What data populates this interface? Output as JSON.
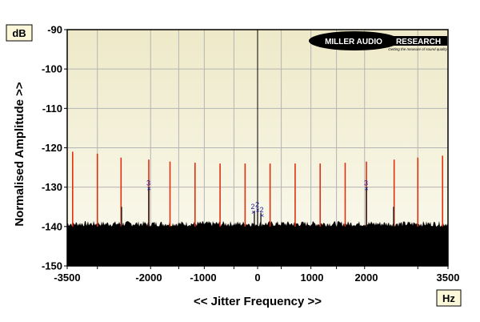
{
  "chart_data": {
    "type": "line",
    "ylabel": "Normalised Amplitude >>",
    "xlabel": "<< Jitter Frequency >>",
    "y_unit": "dB",
    "x_unit": "Hz",
    "xlim": [
      -3500,
      3500
    ],
    "ylim": [
      -150,
      -90
    ],
    "x_tick_labels": [
      {
        "value": -3500,
        "label": "-3500"
      },
      {
        "value": -2000,
        "label": "-2000"
      },
      {
        "value": -1000,
        "label": "-1000"
      },
      {
        "value": 0,
        "label": "0"
      },
      {
        "value": 1000,
        "label": "1000"
      },
      {
        "value": 2000,
        "label": "2000"
      },
      {
        "value": 3500,
        "label": "3500"
      }
    ],
    "x_gridlines": [
      -2945,
      -1967,
      -1450,
      -980,
      -435,
      0,
      435,
      980,
      1450,
      1967,
      2945
    ],
    "y_ticks": [
      -90,
      -100,
      -110,
      -120,
      -130,
      -140,
      -150
    ],
    "grid": true,
    "noise_floor_db": -140,
    "series": [
      {
        "color": "#e03010",
        "points": [
          {
            "x": -3400,
            "y": -121
          },
          {
            "x": -2945,
            "y": -121.5
          },
          {
            "x": -2510,
            "y": -122.5
          },
          {
            "x": -2000,
            "y": -123
          },
          {
            "x": -1610,
            "y": -123.5
          },
          {
            "x": -1150,
            "y": -123.8
          },
          {
            "x": -690,
            "y": -124
          },
          {
            "x": -230,
            "y": -124
          },
          {
            "x": 230,
            "y": -124
          },
          {
            "x": 690,
            "y": -124
          },
          {
            "x": 1150,
            "y": -124
          },
          {
            "x": 1610,
            "y": -123.8
          },
          {
            "x": 2000,
            "y": -123.5
          },
          {
            "x": 2510,
            "y": -123
          },
          {
            "x": 2945,
            "y": -122.5
          },
          {
            "x": 3400,
            "y": -122
          }
        ]
      },
      {
        "color": "#111111",
        "points": [
          {
            "x": -2500,
            "y": -135
          },
          {
            "x": -2000,
            "y": -130
          },
          {
            "x": -60,
            "y": -136
          },
          {
            "x": 0,
            "y": -135.5
          },
          {
            "x": 60,
            "y": -136.5
          },
          {
            "x": 2000,
            "y": -130
          },
          {
            "x": 2500,
            "y": -135
          }
        ]
      }
    ],
    "markers": [
      {
        "x": -2000,
        "y": -130,
        "label": "3"
      },
      {
        "x": -80,
        "y": -136,
        "label": "2"
      },
      {
        "x": 0,
        "y": -135.5,
        "label": "2"
      },
      {
        "x": 80,
        "y": -136.8,
        "label": "2"
      },
      {
        "x": 2000,
        "y": -130,
        "label": "3"
      }
    ],
    "logo": {
      "brand": "MILLER AUDIO RESEARCH",
      "brand_left": "MILLER AUDIO",
      "brand_right": "RESEARCH",
      "tagline": "Getting the measure of sound quality"
    }
  }
}
